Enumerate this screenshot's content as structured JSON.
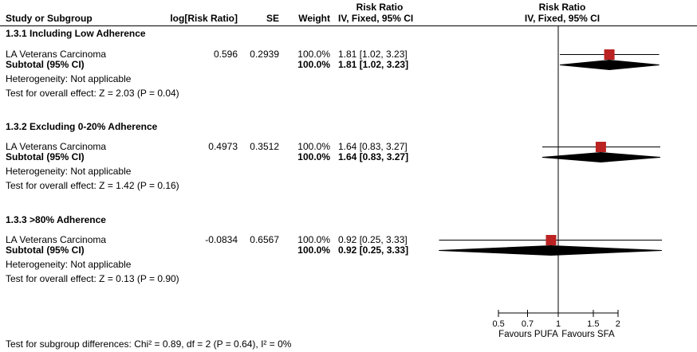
{
  "header": {
    "stats_title": "Risk Ratio",
    "plot_title": "Risk Ratio",
    "columns": {
      "study": "Study or Subgroup",
      "log_rr": "log[Risk Ratio]",
      "se": "SE",
      "weight": "Weight",
      "ci": "IV, Fixed, 95% CI"
    },
    "plot_subtitle": "IV, Fixed, 95% CI"
  },
  "groups": [
    {
      "title": "1.3.1 Including Low Adherence",
      "study": {
        "name": "LA Veterans Carcinoma",
        "log_rr": "0.596",
        "se": "0.2939",
        "weight": "100.0%",
        "ci_text": "1.81 [1.02, 3.23]"
      },
      "subtotal": {
        "label": "Subtotal (95% CI)",
        "weight": "100.0%",
        "ci_text": "1.81 [1.02, 3.23]"
      },
      "heterogeneity": "Heterogeneity: Not applicable",
      "overall_effect": "Test for overall effect: Z = 2.03 (P = 0.04)"
    },
    {
      "title": "1.3.2 Excluding 0-20% Adherence",
      "study": {
        "name": "LA Veterans Carcinoma",
        "log_rr": "0.4973",
        "se": "0.3512",
        "weight": "100.0%",
        "ci_text": "1.64 [0.83, 3.27]"
      },
      "subtotal": {
        "label": "Subtotal (95% CI)",
        "weight": "100.0%",
        "ci_text": "1.64 [0.83, 3.27]"
      },
      "heterogeneity": "Heterogeneity: Not applicable",
      "overall_effect": "Test for overall effect: Z = 1.42 (P = 0.16)"
    },
    {
      "title": "1.3.3 >80% Adherence",
      "study": {
        "name": "LA Veterans Carcinoma",
        "log_rr": "-0.0834",
        "se": "0.6567",
        "weight": "100.0%",
        "ci_text": "0.92 [0.25, 3.33]"
      },
      "subtotal": {
        "label": "Subtotal (95% CI)",
        "weight": "100.0%",
        "ci_text": "0.92 [0.25, 3.33]"
      },
      "heterogeneity": "Heterogeneity: Not applicable",
      "overall_effect": "Test for overall effect: Z = 0.13 (P = 0.90)"
    }
  ],
  "footer": {
    "subgroup_differences": "Test for subgroup differences: Chi² = 0.89, df = 2 (P = 0.64), I² = 0%"
  },
  "chart_data": {
    "type": "forest",
    "effect_measure": "Risk Ratio",
    "method": "IV, Fixed, 95% CI",
    "marker_color": "#BB2222",
    "diamond_color": "#000000",
    "x_axis": {
      "scale": "log",
      "null_line": 1,
      "ticks": [
        0.5,
        0.7,
        1,
        1.5,
        2
      ],
      "tick_labels": [
        "0.5",
        "0.7",
        "1",
        "1.5",
        "2"
      ],
      "favours_left": "Favours PUFA",
      "favours_right": "Favours SFA"
    },
    "rows": [
      {
        "group": "1.3.1 Including Low Adherence",
        "kind": "study",
        "label": "LA Veterans Carcinoma",
        "log_rr": 0.596,
        "se": 0.2939,
        "weight_pct": 100.0,
        "estimate": 1.81,
        "ci_low": 1.02,
        "ci_high": 3.23
      },
      {
        "group": "1.3.1 Including Low Adherence",
        "kind": "subtotal",
        "label": "Subtotal (95% CI)",
        "weight_pct": 100.0,
        "estimate": 1.81,
        "ci_low": 1.02,
        "ci_high": 3.23
      },
      {
        "group": "1.3.2 Excluding 0-20% Adherence",
        "kind": "study",
        "label": "LA Veterans Carcinoma",
        "log_rr": 0.4973,
        "se": 0.3512,
        "weight_pct": 100.0,
        "estimate": 1.64,
        "ci_low": 0.83,
        "ci_high": 3.27
      },
      {
        "group": "1.3.2 Excluding 0-20% Adherence",
        "kind": "subtotal",
        "label": "Subtotal (95% CI)",
        "weight_pct": 100.0,
        "estimate": 1.64,
        "ci_low": 0.83,
        "ci_high": 3.27
      },
      {
        "group": "1.3.3 >80% Adherence",
        "kind": "study",
        "label": "LA Veterans Carcinoma",
        "log_rr": -0.0834,
        "se": 0.6567,
        "weight_pct": 100.0,
        "estimate": 0.92,
        "ci_low": 0.25,
        "ci_high": 3.33
      },
      {
        "group": "1.3.3 >80% Adherence",
        "kind": "subtotal",
        "label": "Subtotal (95% CI)",
        "weight_pct": 100.0,
        "estimate": 0.92,
        "ci_low": 0.25,
        "ci_high": 3.33
      }
    ]
  }
}
